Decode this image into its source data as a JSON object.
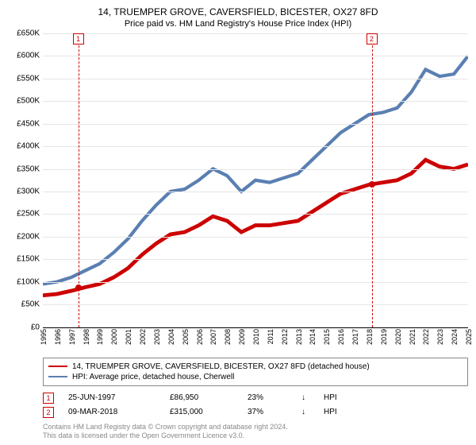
{
  "title_main": "14, TRUEMPER GROVE, CAVERSFIELD, BICESTER, OX27 8FD",
  "title_sub": "Price paid vs. HM Land Registry's House Price Index (HPI)",
  "title_fontsize_main": 12,
  "title_fontsize_sub": 11,
  "chart": {
    "type": "line",
    "background_color": "#ffffff",
    "grid_color": "#e6e6e6",
    "axis_line_color": "#000000",
    "ylim": [
      0,
      650000
    ],
    "ytick_step": 50000,
    "yticks": [
      "£0",
      "£50K",
      "£100K",
      "£150K",
      "£200K",
      "£250K",
      "£300K",
      "£350K",
      "£400K",
      "£450K",
      "£500K",
      "£550K",
      "£600K",
      "£650K"
    ],
    "yticks_values": [
      0,
      50000,
      100000,
      150000,
      200000,
      250000,
      300000,
      350000,
      400000,
      450000,
      500000,
      550000,
      600000,
      650000
    ],
    "xlim": [
      1995,
      2025
    ],
    "xtick_step": 1,
    "xticks": [
      "1995",
      "1996",
      "1997",
      "1998",
      "1999",
      "2000",
      "2001",
      "2002",
      "2003",
      "2004",
      "2005",
      "2006",
      "2007",
      "2008",
      "2009",
      "2010",
      "2011",
      "2012",
      "2013",
      "2014",
      "2015",
      "2016",
      "2017",
      "2018",
      "2019",
      "2020",
      "2021",
      "2022",
      "2023",
      "2024",
      "2025"
    ],
    "tick_fontsize": 10,
    "series": {
      "price_paid": {
        "label": "14, TRUEMPER GROVE, CAVERSFIELD, BICESTER, OX27 8FD (detached house)",
        "color": "#cc0000",
        "line_width": 1.6,
        "x": [
          1995,
          1996,
          1997,
          1998,
          1999,
          2000,
          2001,
          2002,
          2003,
          2004,
          2005,
          2006,
          2007,
          2008,
          2009,
          2010,
          2011,
          2012,
          2013,
          2014,
          2015,
          2016,
          2017,
          2018,
          2019,
          2020,
          2021,
          2022,
          2023,
          2024,
          2025
        ],
        "y": [
          70000,
          73000,
          80000,
          88000,
          95000,
          110000,
          130000,
          160000,
          185000,
          205000,
          210000,
          225000,
          245000,
          235000,
          210000,
          225000,
          225000,
          230000,
          235000,
          255000,
          275000,
          295000,
          305000,
          315000,
          320000,
          325000,
          340000,
          370000,
          355000,
          350000,
          360000
        ]
      },
      "hpi": {
        "label": "HPI: Average price, detached house, Cherwell",
        "color": "#5a7fb2",
        "line_width": 1.4,
        "x": [
          1995,
          1996,
          1997,
          1998,
          1999,
          2000,
          2001,
          2002,
          2003,
          2004,
          2005,
          2006,
          2007,
          2008,
          2009,
          2010,
          2011,
          2012,
          2013,
          2014,
          2015,
          2016,
          2017,
          2018,
          2019,
          2020,
          2021,
          2022,
          2023,
          2024,
          2025
        ],
        "y": [
          95000,
          100000,
          110000,
          125000,
          140000,
          165000,
          195000,
          235000,
          270000,
          300000,
          305000,
          325000,
          350000,
          335000,
          300000,
          325000,
          320000,
          330000,
          340000,
          370000,
          400000,
          430000,
          450000,
          470000,
          475000,
          485000,
          520000,
          570000,
          555000,
          560000,
          600000
        ]
      }
    },
    "markers": [
      {
        "badge": "1",
        "x": 1997.5,
        "y": 86950,
        "dot_color": "#cc0000"
      },
      {
        "badge": "2",
        "x": 2018.2,
        "y": 315000,
        "dot_color": "#cc0000"
      }
    ],
    "marker_line_color": "#cc0000",
    "marker_line_dash": "3,3"
  },
  "legend": {
    "rows": [
      {
        "color": "#cc0000",
        "text": "14, TRUEMPER GROVE, CAVERSFIELD, BICESTER, OX27 8FD (detached house)"
      },
      {
        "color": "#5a7fb2",
        "text": "HPI: Average price, detached house, Cherwell"
      }
    ],
    "border_color": "#888888",
    "fontsize": 10
  },
  "sales": [
    {
      "badge": "1",
      "date": "25-JUN-1997",
      "price": "£86,950",
      "pct": "23%",
      "arrow": "↓",
      "vs": "HPI"
    },
    {
      "badge": "2",
      "date": "09-MAR-2018",
      "price": "£315,000",
      "pct": "37%",
      "arrow": "↓",
      "vs": "HPI"
    }
  ],
  "footer_line1": "Contains HM Land Registry data © Crown copyright and database right 2024.",
  "footer_line2": "This data is licensed under the Open Government Licence v3.0.",
  "footer_color": "#888888",
  "footer_fontsize": 9
}
